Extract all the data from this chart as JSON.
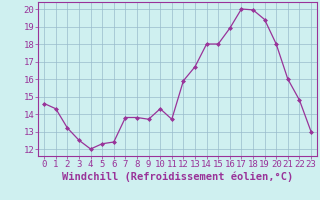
{
  "x": [
    0,
    1,
    2,
    3,
    4,
    5,
    6,
    7,
    8,
    9,
    10,
    11,
    12,
    13,
    14,
    15,
    16,
    17,
    18,
    19,
    20,
    21,
    22,
    23
  ],
  "y": [
    14.6,
    14.3,
    13.2,
    12.5,
    12.0,
    12.3,
    12.4,
    13.8,
    13.8,
    13.7,
    14.3,
    13.7,
    15.9,
    16.7,
    18.0,
    18.0,
    18.9,
    20.0,
    19.95,
    19.4,
    18.0,
    16.0,
    14.8,
    13.0
  ],
  "line_color": "#993399",
  "marker": "D",
  "marker_size": 2,
  "bg_color": "#cff0f0",
  "grid_color": "#99bbcc",
  "ylabel_ticks": [
    12,
    13,
    14,
    15,
    16,
    17,
    18,
    19,
    20
  ],
  "ylim": [
    11.6,
    20.4
  ],
  "xlim": [
    -0.5,
    23.5
  ],
  "xlabel": "Windchill (Refroidissement éolien,°C)",
  "xlabel_fontsize": 7.5,
  "tick_fontsize": 6.5,
  "title": ""
}
